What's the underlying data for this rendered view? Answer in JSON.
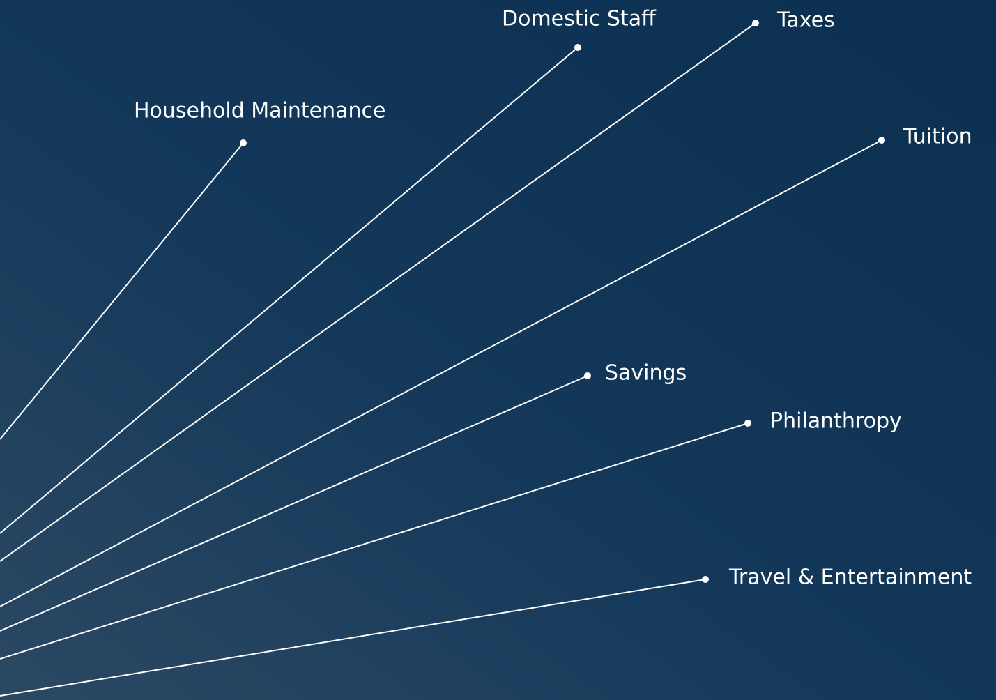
{
  "nodes": [
    {
      "label": "Household Maintenance"
    },
    {
      "label": "Domestic Staff"
    },
    {
      "label": "Taxes"
    },
    {
      "label": "Tuition"
    },
    {
      "label": "Savings"
    },
    {
      "label": "Philanthropy"
    },
    {
      "label": "Travel & Entertainment"
    }
  ]
}
